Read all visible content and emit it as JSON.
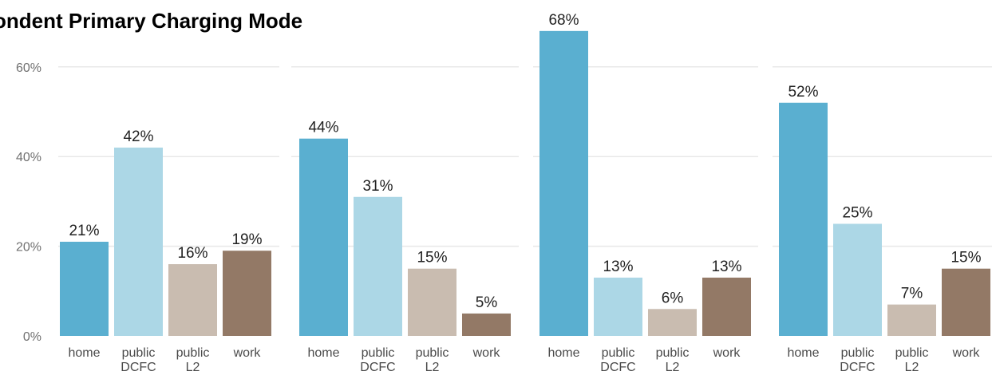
{
  "chart_data": {
    "type": "bar",
    "title": "ondent Primary Charging Mode",
    "xlabel": "",
    "ylabel": "",
    "ylim": [
      0,
      0.68
    ],
    "y_ticks": [
      "0%",
      "20%",
      "40%",
      "60%"
    ],
    "y_tick_values": [
      0,
      0.2,
      0.4,
      0.6
    ],
    "grid": true,
    "categories": [
      "home",
      "public DCFC",
      "public L2",
      "work"
    ],
    "category_lines": [
      [
        "home"
      ],
      [
        "public",
        "DCFC"
      ],
      [
        "public",
        "L2"
      ],
      [
        "work"
      ]
    ],
    "colors": [
      "#5aafd0",
      "#acd7e6",
      "#c9bcb0",
      "#937966"
    ],
    "panels": [
      {
        "values": [
          0.21,
          0.42,
          0.16,
          0.19
        ],
        "labels": [
          "21%",
          "42%",
          "16%",
          "19%"
        ]
      },
      {
        "values": [
          0.44,
          0.31,
          0.15,
          0.05
        ],
        "labels": [
          "44%",
          "31%",
          "15%",
          "5%"
        ]
      },
      {
        "values": [
          0.68,
          0.13,
          0.06,
          0.13
        ],
        "labels": [
          "68%",
          "13%",
          "6%",
          "13%"
        ]
      },
      {
        "values": [
          0.52,
          0.25,
          0.07,
          0.15
        ],
        "labels": [
          "52%",
          "25%",
          "7%",
          "15%"
        ]
      }
    ]
  }
}
